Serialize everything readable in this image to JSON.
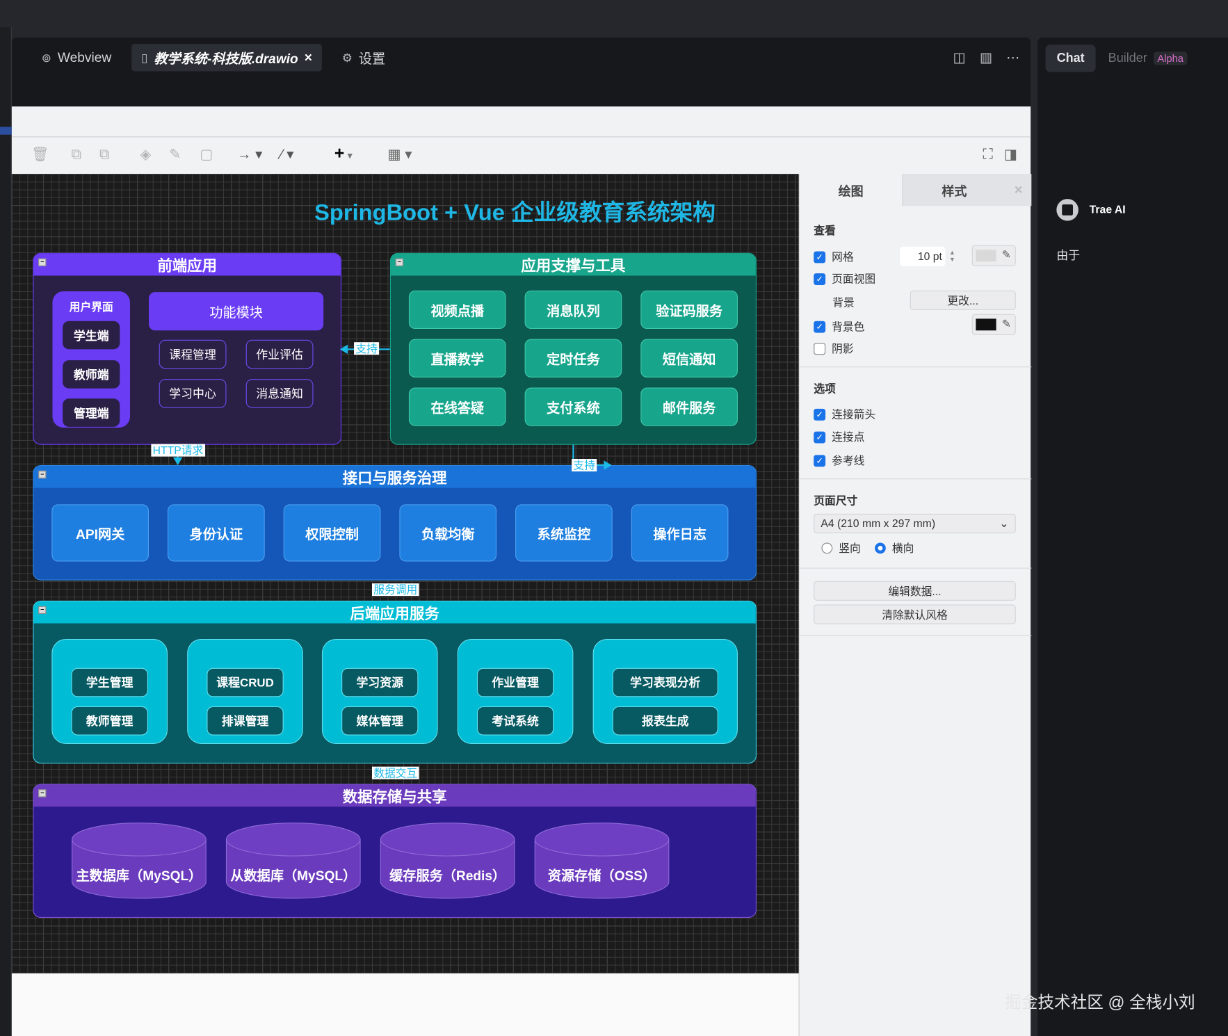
{
  "editor": {
    "tabs": [
      {
        "label": "Webview",
        "icon": "webview-icon"
      },
      {
        "label": "教学系统-科技版.drawio",
        "icon": "file-icon",
        "close": "×"
      },
      {
        "label": "设置",
        "icon": "gear-icon"
      }
    ]
  },
  "chat": {
    "tabs": {
      "chat": "Chat",
      "builder": "Builder",
      "badge": "Alpha"
    },
    "assistant": "Trae AI",
    "message": "由于"
  },
  "diagram": {
    "title": "SpringBoot + Vue 企业级教育系统架构",
    "frontend": {
      "title": "前端应用",
      "user_group": "用户界面",
      "users": [
        "学生端",
        "教师端",
        "管理端"
      ],
      "module_title": "功能模块",
      "modules": [
        "课程管理",
        "作业评估",
        "学习中心",
        "消息通知"
      ]
    },
    "support": {
      "title": "应用支撑与工具",
      "items": [
        "视频点播",
        "消息队列",
        "验证码服务",
        "直播教学",
        "定时任务",
        "短信通知",
        "在线答疑",
        "支付系统",
        "邮件服务"
      ]
    },
    "gateway": {
      "title": "接口与服务治理",
      "items": [
        "API网关",
        "身份认证",
        "权限控制",
        "负载均衡",
        "系统监控",
        "操作日志"
      ]
    },
    "backend": {
      "title": "后端应用服务",
      "groups": [
        [
          "学生管理",
          "教师管理"
        ],
        [
          "课程CRUD",
          "排课管理"
        ],
        [
          "学习资源",
          "媒体管理"
        ],
        [
          "作业管理",
          "考试系统"
        ],
        [
          "学习表现分析",
          "报表生成"
        ]
      ]
    },
    "storage": {
      "title": "数据存储与共享",
      "items": [
        "主数据库（MySQL）",
        "从数据库（MySQL）",
        "缓存服务（Redis）",
        "资源存储（OSS）"
      ]
    },
    "edges": {
      "support_left": "支持",
      "http": "HTTP请求",
      "support_right": "支持",
      "service_call": "服务调用",
      "data_exchange": "数据交互"
    },
    "colors": {
      "title": "#1fb8e6",
      "frontend": "#6a3df5",
      "support": "#17a58c",
      "gateway": "#1e7fe0",
      "backend": "#00bcd4",
      "storage": "#6b3bbd"
    }
  },
  "panel": {
    "tabs": [
      "绘图",
      "样式"
    ],
    "view": {
      "heading": "查看",
      "grid": "网格",
      "grid_size": "10 pt",
      "page_view": "页面视图",
      "background": "背景",
      "change": "更改...",
      "bg_color": "背景色",
      "shadow": "阴影"
    },
    "options": {
      "heading": "选项",
      "arrows": "连接箭头",
      "points": "连接点",
      "guides": "参考线"
    },
    "page": {
      "heading": "页面尺寸",
      "size": "A4 (210 mm x 297 mm)",
      "portrait": "竖向",
      "landscape": "横向"
    },
    "edit_data": "编辑数据...",
    "clear_style": "清除默认风格"
  },
  "watermark": "掘金技术社区 @ 全栈小刘"
}
